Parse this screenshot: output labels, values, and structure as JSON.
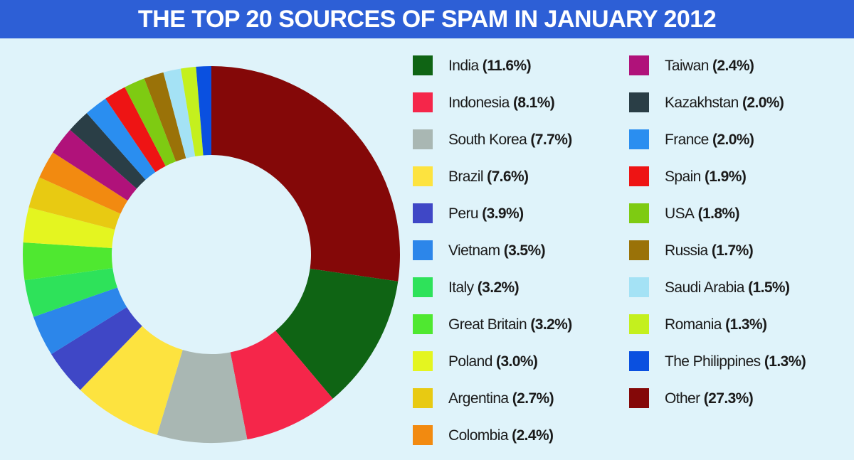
{
  "chart_data": {
    "type": "donut",
    "title": "THE TOP 20 SOURCES OF SPAM IN JANUARY 2012",
    "categories": [
      "India",
      "Indonesia",
      "South Korea",
      "Brazil",
      "Peru",
      "Vietnam",
      "Italy",
      "Great Britain",
      "Poland",
      "Argentina",
      "Colombia",
      "Taiwan",
      "Kazakhstan",
      "France",
      "Spain",
      "USA",
      "Russia",
      "Saudi Arabia",
      "Romania",
      "The Philippines",
      "Other"
    ],
    "values": [
      11.6,
      8.1,
      7.7,
      7.6,
      3.9,
      3.5,
      3.2,
      3.2,
      3.0,
      2.7,
      2.4,
      2.4,
      2.0,
      2.0,
      1.9,
      1.8,
      1.7,
      1.5,
      1.3,
      1.3,
      27.3
    ],
    "value_labels": [
      "(11.6%)",
      "(8.1%)",
      "(7.7%)",
      "(7.6%)",
      "(3.9%)",
      "(3.5%)",
      "(3.2%)",
      "(3.2%)",
      "(3.0%)",
      "(2.7%)",
      "(2.4%)",
      "(2.4%)",
      "(2.0%)",
      "(2.0%)",
      "(1.9%)",
      "(1.8%)",
      "(1.7%)",
      "(1.5%)",
      "(1.3%)",
      "(1.3%)",
      "(27.3%)"
    ],
    "colors": [
      "#0f6414",
      "#f5264a",
      "#a9b7b3",
      "#fde33f",
      "#3f47c6",
      "#2c86ea",
      "#2ee25a",
      "#4fe830",
      "#e4f520",
      "#e8ca12",
      "#f28a10",
      "#b0127a",
      "#2a3e46",
      "#2a8ef0",
      "#ee1414",
      "#7ecb12",
      "#9a7208",
      "#a4e2f5",
      "#c4f01e",
      "#0a50e0",
      "#840808"
    ]
  }
}
